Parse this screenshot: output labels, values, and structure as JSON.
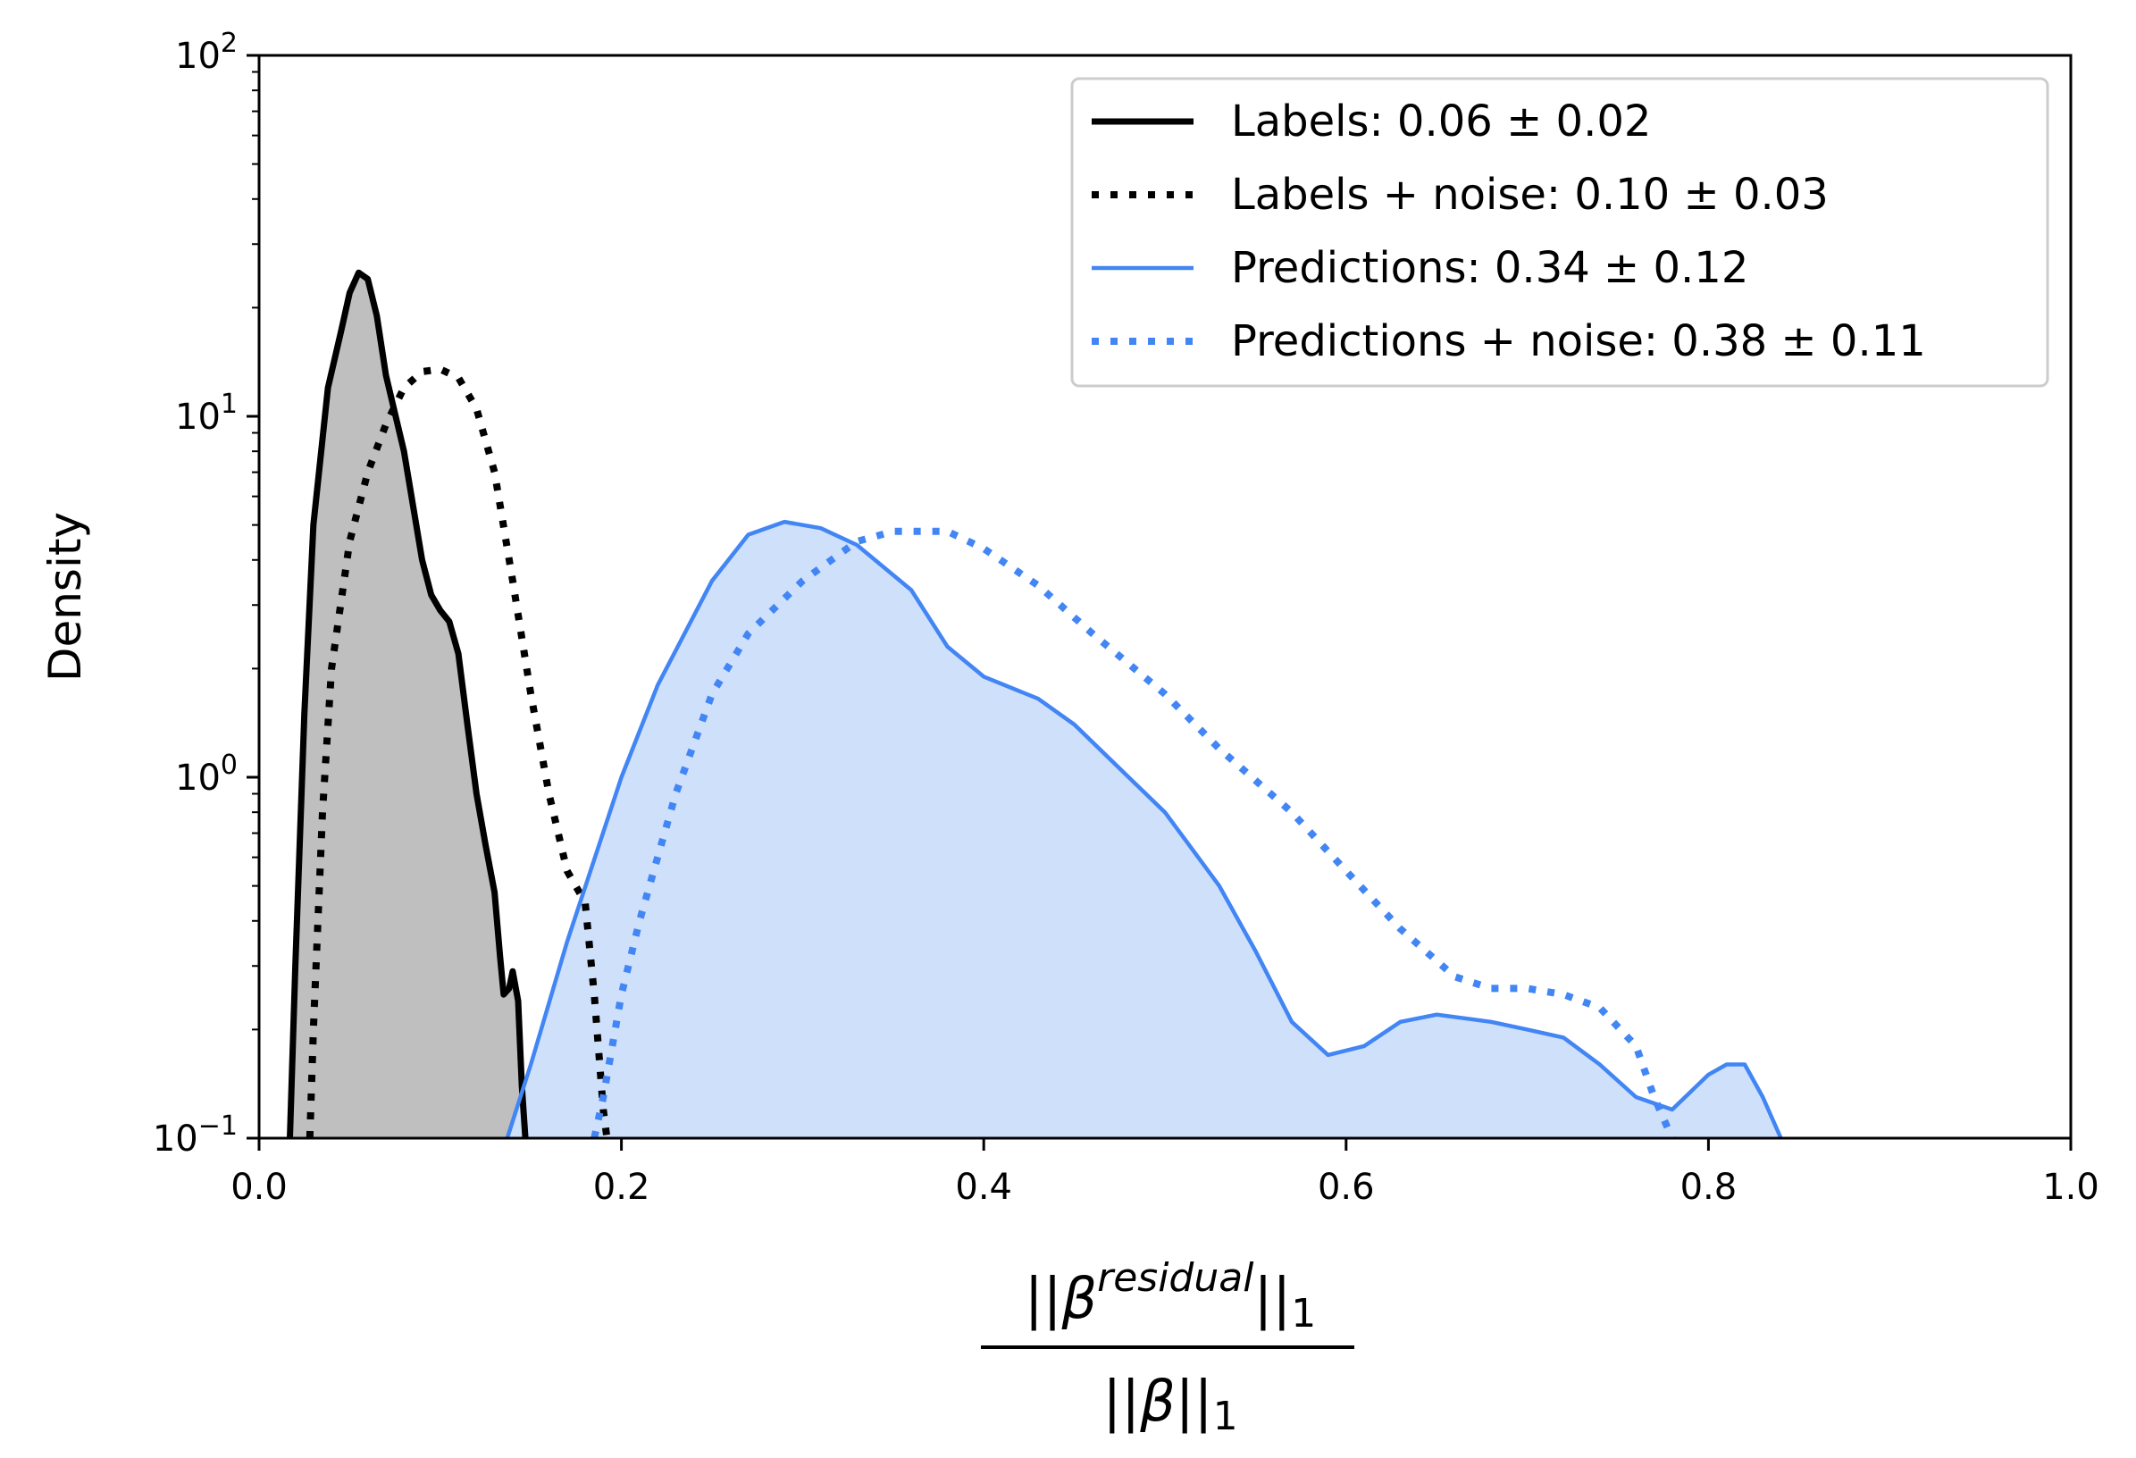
{
  "chart_data": {
    "type": "line",
    "ylabel": "Density",
    "xlabel": {
      "numerator": "||β^residual||_1",
      "numerator_parts": [
        "||",
        "β",
        "residual",
        "||",
        "1"
      ],
      "denominator": "||β||_1",
      "denominator_parts": [
        "||",
        "β",
        "||",
        "1"
      ]
    },
    "xlim": [
      0.0,
      1.0
    ],
    "ylim": [
      0.1,
      100
    ],
    "yscale": "log",
    "x_ticks": [
      "0.0",
      "0.2",
      "0.4",
      "0.6",
      "0.8",
      "1.0"
    ],
    "y_ticks": [
      {
        "base": "10",
        "exp": "−1"
      },
      {
        "base": "10",
        "exp": "0"
      },
      {
        "base": "10",
        "exp": "1"
      },
      {
        "base": "10",
        "exp": "2"
      }
    ],
    "legend_position": "upper right",
    "series": [
      {
        "name": "Labels: 0.06 ± 0.02",
        "color": "#000000",
        "style": "solid",
        "fill": "#bfbfbf",
        "points": [
          [
            0.017,
            0.1
          ],
          [
            0.02,
            0.3
          ],
          [
            0.025,
            1.5
          ],
          [
            0.03,
            5
          ],
          [
            0.038,
            12
          ],
          [
            0.045,
            17
          ],
          [
            0.05,
            22
          ],
          [
            0.055,
            25
          ],
          [
            0.06,
            24
          ],
          [
            0.065,
            19
          ],
          [
            0.07,
            13
          ],
          [
            0.08,
            8
          ],
          [
            0.09,
            4
          ],
          [
            0.095,
            3.2
          ],
          [
            0.1,
            2.9
          ],
          [
            0.105,
            2.7
          ],
          [
            0.11,
            2.2
          ],
          [
            0.115,
            1.4
          ],
          [
            0.12,
            0.9
          ],
          [
            0.125,
            0.65
          ],
          [
            0.13,
            0.48
          ],
          [
            0.133,
            0.32
          ],
          [
            0.135,
            0.25
          ],
          [
            0.138,
            0.26
          ],
          [
            0.14,
            0.29
          ],
          [
            0.143,
            0.24
          ],
          [
            0.145,
            0.14
          ],
          [
            0.147,
            0.1
          ]
        ]
      },
      {
        "name": "Labels + noise: 0.10 ± 0.03",
        "color": "#000000",
        "style": "dotted",
        "points": [
          [
            0.028,
            0.1
          ],
          [
            0.03,
            0.2
          ],
          [
            0.035,
            0.8
          ],
          [
            0.04,
            2
          ],
          [
            0.05,
            4.5
          ],
          [
            0.06,
            7
          ],
          [
            0.07,
            9.5
          ],
          [
            0.08,
            12
          ],
          [
            0.09,
            13.3
          ],
          [
            0.1,
            13.5
          ],
          [
            0.11,
            12.8
          ],
          [
            0.12,
            10.5
          ],
          [
            0.13,
            7
          ],
          [
            0.14,
            3.5
          ],
          [
            0.15,
            1.7
          ],
          [
            0.16,
            0.9
          ],
          [
            0.17,
            0.55
          ],
          [
            0.18,
            0.45
          ],
          [
            0.185,
            0.25
          ],
          [
            0.19,
            0.12
          ],
          [
            0.192,
            0.1
          ]
        ]
      },
      {
        "name": "Predictions: 0.34 ± 0.12",
        "color": "#4285f4",
        "style": "solid",
        "fill": "#cfe0fb",
        "points": [
          [
            0.137,
            0.1
          ],
          [
            0.15,
            0.16
          ],
          [
            0.17,
            0.35
          ],
          [
            0.2,
            1.0
          ],
          [
            0.22,
            1.8
          ],
          [
            0.25,
            3.5
          ],
          [
            0.27,
            4.7
          ],
          [
            0.29,
            5.1
          ],
          [
            0.31,
            4.9
          ],
          [
            0.33,
            4.4
          ],
          [
            0.36,
            3.3
          ],
          [
            0.38,
            2.3
          ],
          [
            0.4,
            1.9
          ],
          [
            0.43,
            1.65
          ],
          [
            0.45,
            1.4
          ],
          [
            0.48,
            1.0
          ],
          [
            0.5,
            0.8
          ],
          [
            0.53,
            0.5
          ],
          [
            0.55,
            0.33
          ],
          [
            0.57,
            0.21
          ],
          [
            0.59,
            0.17
          ],
          [
            0.61,
            0.18
          ],
          [
            0.63,
            0.21
          ],
          [
            0.65,
            0.22
          ],
          [
            0.68,
            0.21
          ],
          [
            0.7,
            0.2
          ],
          [
            0.72,
            0.19
          ],
          [
            0.74,
            0.16
          ],
          [
            0.76,
            0.13
          ],
          [
            0.78,
            0.12
          ],
          [
            0.8,
            0.15
          ],
          [
            0.81,
            0.16
          ],
          [
            0.82,
            0.16
          ],
          [
            0.83,
            0.13
          ],
          [
            0.84,
            0.1
          ]
        ]
      },
      {
        "name": "Predictions + noise: 0.38 ± 0.11",
        "color": "#4285f4",
        "style": "dotted",
        "points": [
          [
            0.185,
            0.1
          ],
          [
            0.19,
            0.13
          ],
          [
            0.2,
            0.25
          ],
          [
            0.21,
            0.4
          ],
          [
            0.23,
            0.9
          ],
          [
            0.25,
            1.7
          ],
          [
            0.27,
            2.5
          ],
          [
            0.3,
            3.5
          ],
          [
            0.33,
            4.5
          ],
          [
            0.35,
            4.8
          ],
          [
            0.38,
            4.8
          ],
          [
            0.4,
            4.3
          ],
          [
            0.43,
            3.4
          ],
          [
            0.46,
            2.5
          ],
          [
            0.5,
            1.7
          ],
          [
            0.53,
            1.2
          ],
          [
            0.57,
            0.8
          ],
          [
            0.6,
            0.55
          ],
          [
            0.63,
            0.38
          ],
          [
            0.66,
            0.28
          ],
          [
            0.68,
            0.26
          ],
          [
            0.7,
            0.26
          ],
          [
            0.72,
            0.25
          ],
          [
            0.74,
            0.23
          ],
          [
            0.76,
            0.18
          ],
          [
            0.77,
            0.13
          ],
          [
            0.78,
            0.1
          ]
        ]
      }
    ]
  }
}
